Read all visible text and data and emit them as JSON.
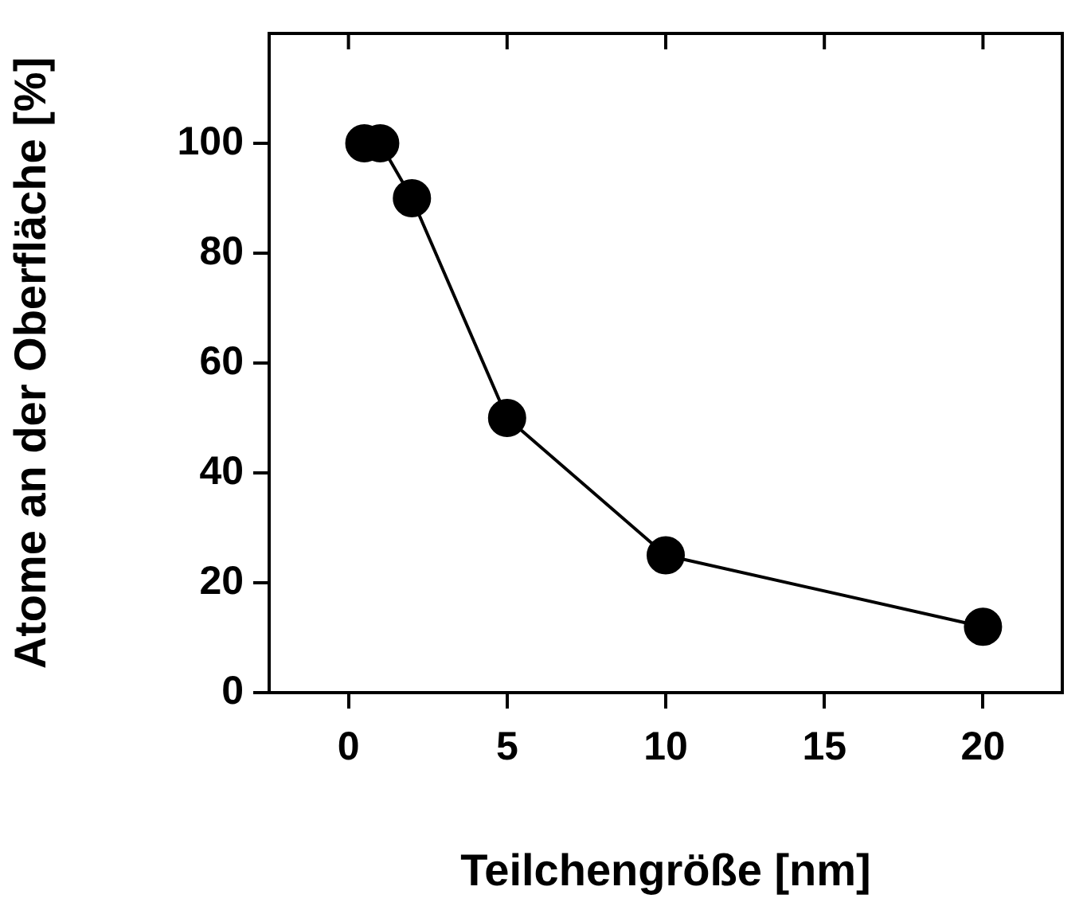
{
  "chart_data": {
    "type": "line",
    "xlabel": "Teilchengröße [nm]",
    "ylabel": "Atome an der Oberfläche [%]",
    "series": [
      {
        "color": "#000000",
        "x": [
          0.5,
          1,
          2,
          5,
          10,
          20
        ],
        "values": [
          100,
          100,
          90,
          50,
          25,
          12
        ]
      }
    ],
    "xlim": [
      -2.5,
      22.5
    ],
    "xticks": [
      0,
      5,
      10,
      15,
      20
    ],
    "ylim": [
      0,
      120
    ],
    "yticks": [
      0,
      20,
      40,
      60,
      80,
      100
    ],
    "grid": false,
    "legend": false,
    "marker": "circle",
    "line_style": "solid"
  }
}
